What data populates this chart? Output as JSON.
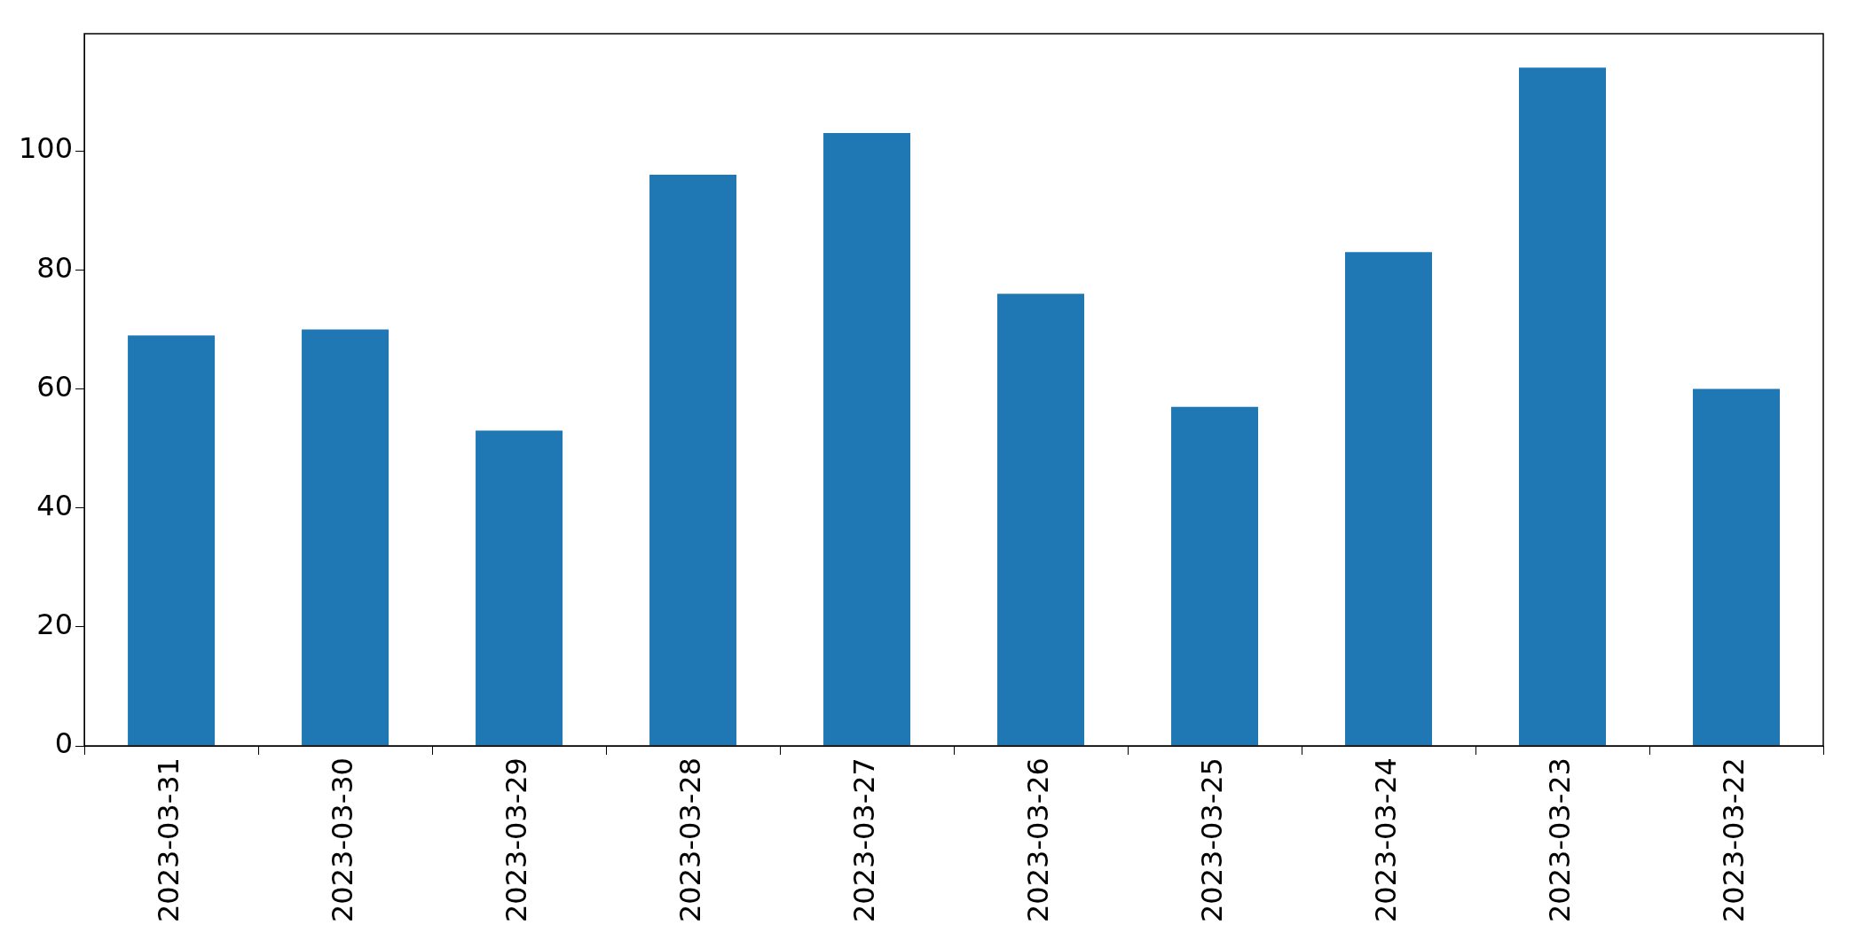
{
  "chart_data": {
    "type": "bar",
    "categories": [
      "2023-03-31",
      "2023-03-30",
      "2023-03-29",
      "2023-03-28",
      "2023-03-27",
      "2023-03-26",
      "2023-03-25",
      "2023-03-24",
      "2023-03-23",
      "2023-03-22"
    ],
    "values": [
      69,
      70,
      53,
      96,
      103,
      76,
      57,
      83,
      114,
      60
    ],
    "color": "#1f77b4",
    "ylim": [
      0,
      119.7
    ],
    "yticks": [
      0,
      20,
      40,
      60,
      80,
      100
    ],
    "grid": false,
    "legend": false
  }
}
